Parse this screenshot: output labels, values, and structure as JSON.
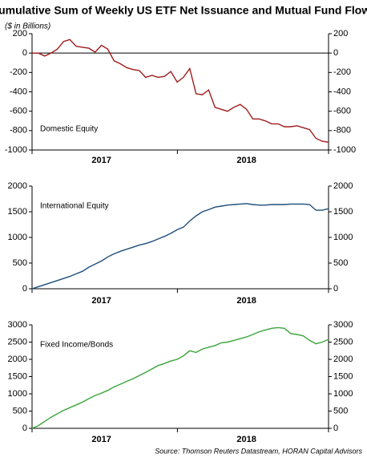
{
  "title": "Cumulative Sum of Weekly US ETF Net Issuance and Mutual Fund Flows",
  "y_axis_note": "($ in Billions)",
  "source": "Source: Thomson Reuters Datastream, HORAN Capital Advisors",
  "chart_data": [
    {
      "type": "line",
      "annotation": "Domestic Equity",
      "color": "#a01c1c",
      "categories": [
        null,
        null,
        null,
        null,
        null,
        null,
        null,
        null,
        null,
        null,
        null,
        "2017",
        null,
        null,
        null,
        null,
        null,
        null,
        null,
        null,
        null,
        null,
        null,
        null,
        null,
        null,
        null,
        null,
        null,
        null,
        null,
        null,
        null,
        null,
        "2018",
        null,
        null,
        null,
        null,
        null,
        null,
        null,
        null,
        null,
        null,
        null,
        null,
        null
      ],
      "values": [
        0,
        0,
        -30,
        0,
        40,
        120,
        140,
        70,
        60,
        50,
        10,
        80,
        40,
        -80,
        -110,
        -150,
        -170,
        -180,
        -250,
        -230,
        -250,
        -240,
        -190,
        -300,
        -250,
        -160,
        -420,
        -430,
        -380,
        -560,
        -580,
        -600,
        -560,
        -530,
        -580,
        -680,
        -680,
        -700,
        -730,
        -730,
        -760,
        -760,
        -750,
        -770,
        -790,
        -880,
        -910,
        -920
      ],
      "ylim": [
        -1000,
        200
      ],
      "yticks": [
        -1000,
        -800,
        -600,
        -400,
        -200,
        0,
        200
      ],
      "y2lim": [
        -1000,
        200
      ],
      "y2ticks": [
        -1000,
        -800,
        -600,
        -400,
        -200,
        0,
        200
      ]
    },
    {
      "type": "line",
      "annotation": "International Equity",
      "color": "#1f4e79",
      "categories": [
        null,
        null,
        null,
        null,
        null,
        null,
        null,
        null,
        null,
        null,
        null,
        "2017",
        null,
        null,
        null,
        null,
        null,
        null,
        null,
        null,
        null,
        null,
        null,
        null,
        null,
        null,
        null,
        null,
        null,
        null,
        null,
        null,
        null,
        null,
        "2018",
        null,
        null,
        null,
        null,
        null,
        null,
        null,
        null,
        null,
        null,
        null,
        null,
        null
      ],
      "values": [
        0,
        40,
        80,
        120,
        160,
        200,
        240,
        290,
        340,
        420,
        480,
        540,
        620,
        680,
        730,
        770,
        810,
        850,
        880,
        920,
        970,
        1020,
        1080,
        1150,
        1200,
        1320,
        1420,
        1500,
        1540,
        1590,
        1610,
        1630,
        1640,
        1650,
        1660,
        1640,
        1630,
        1630,
        1640,
        1640,
        1640,
        1650,
        1650,
        1650,
        1640,
        1530,
        1530,
        1560
      ],
      "ylim": [
        0,
        2000
      ],
      "yticks": [
        0,
        500,
        1000,
        1500,
        2000
      ],
      "y2lim": [
        0,
        2000
      ],
      "y2ticks": [
        0,
        500,
        1000,
        1500,
        2000
      ]
    },
    {
      "type": "line",
      "annotation": "Fixed Income/Bonds",
      "color": "#3aa53a",
      "categories": [
        null,
        null,
        null,
        null,
        null,
        null,
        null,
        null,
        null,
        null,
        null,
        "2017",
        null,
        null,
        null,
        null,
        null,
        null,
        null,
        null,
        null,
        null,
        null,
        null,
        null,
        null,
        null,
        null,
        null,
        null,
        null,
        null,
        null,
        null,
        "2018",
        null,
        null,
        null,
        null,
        null,
        null,
        null,
        null,
        null,
        null,
        null,
        null,
        null
      ],
      "values": [
        0,
        80,
        200,
        320,
        420,
        520,
        600,
        680,
        760,
        860,
        950,
        1020,
        1100,
        1200,
        1280,
        1360,
        1440,
        1530,
        1620,
        1720,
        1820,
        1880,
        1950,
        2000,
        2100,
        2250,
        2200,
        2300,
        2350,
        2400,
        2480,
        2500,
        2550,
        2600,
        2650,
        2720,
        2800,
        2850,
        2900,
        2920,
        2900,
        2750,
        2720,
        2680,
        2550,
        2450,
        2500,
        2580
      ],
      "ylim": [
        0,
        3000
      ],
      "yticks": [
        0,
        500,
        1000,
        1500,
        2000,
        2500,
        3000
      ],
      "y2lim": [
        0,
        3000
      ],
      "y2ticks": [
        0,
        500,
        1000,
        1500,
        2000,
        2500,
        3000
      ]
    }
  ]
}
